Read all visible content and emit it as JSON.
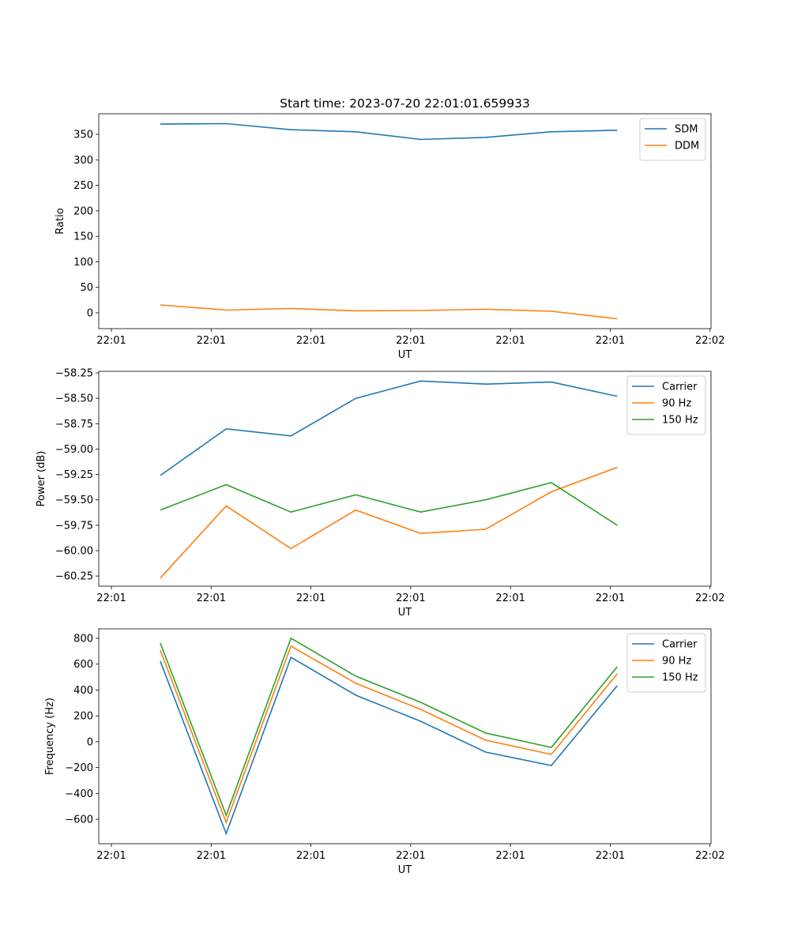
{
  "colors": {
    "blue": "#1f77b4",
    "orange": "#ff7f0e",
    "green": "#2ca02c"
  },
  "chart_data": [
    {
      "type": "line",
      "title": "Start time: 2023-07-20 22:01:01.659933",
      "xlabel": "UT",
      "ylabel": "Ratio",
      "x": [
        0.49,
        1.15,
        1.8,
        2.45,
        3.1,
        3.75,
        4.41,
        5.07
      ],
      "xlim": [
        -0.127,
        6.01
      ],
      "xticks": [
        0,
        1,
        2,
        3,
        4,
        5,
        6
      ],
      "xtick_labels": [
        "22:01",
        "22:01",
        "22:01",
        "22:01",
        "22:01",
        "22:01",
        "22:02"
      ],
      "ylim": [
        -31,
        390.3
      ],
      "yticks": [
        0,
        50,
        100,
        150,
        200,
        250,
        300,
        350
      ],
      "ytick_labels": [
        "0",
        "50",
        "100",
        "150",
        "200",
        "250",
        "300",
        "350"
      ],
      "legend": "top-right",
      "series": [
        {
          "name": "SDM",
          "color": "#1f77b4",
          "values": [
            370,
            371,
            359,
            355,
            340,
            344,
            355,
            358
          ]
        },
        {
          "name": "DDM",
          "color": "#ff7f0e",
          "values": [
            15.5,
            5.4,
            8.5,
            4,
            4.6,
            7,
            3,
            -11.6
          ]
        }
      ]
    },
    {
      "type": "line",
      "title": "",
      "xlabel": "UT",
      "ylabel": "Power (dB)",
      "x": [
        0.49,
        1.15,
        1.8,
        2.45,
        3.1,
        3.75,
        4.41,
        5.07
      ],
      "xlim": [
        -0.127,
        6.01
      ],
      "xticks": [
        0,
        1,
        2,
        3,
        4,
        5,
        6
      ],
      "xtick_labels": [
        "22:01",
        "22:01",
        "22:01",
        "22:01",
        "22:01",
        "22:01",
        "22:02"
      ],
      "ylim": [
        -60.35,
        -58.234
      ],
      "yticks": [
        -60.25,
        -60.0,
        -59.75,
        -59.5,
        -59.25,
        -59.0,
        -58.75,
        -58.5,
        -58.25
      ],
      "ytick_labels": [
        "−60.25",
        "−60.00",
        "−59.75",
        "−59.50",
        "−59.25",
        "−59.00",
        "−58.75",
        "−58.50",
        "−58.25"
      ],
      "legend": "top-right",
      "series": [
        {
          "name": "Carrier",
          "color": "#1f77b4",
          "values": [
            -59.26,
            -58.8,
            -58.87,
            -58.5,
            -58.33,
            -58.36,
            -58.34,
            -58.48
          ]
        },
        {
          "name": "90 Hz",
          "color": "#ff7f0e",
          "values": [
            -60.27,
            -59.56,
            -59.98,
            -59.6,
            -59.83,
            -59.79,
            -59.42,
            -59.18
          ]
        },
        {
          "name": "150 Hz",
          "color": "#2ca02c",
          "values": [
            -59.6,
            -59.35,
            -59.62,
            -59.45,
            -59.62,
            -59.5,
            -59.33,
            -59.75
          ]
        }
      ]
    },
    {
      "type": "line",
      "title": "",
      "xlabel": "UT",
      "ylabel": "Frequency (Hz)",
      "x": [
        0.49,
        1.15,
        1.8,
        2.45,
        3.1,
        3.75,
        4.41,
        5.07
      ],
      "xlim": [
        -0.127,
        6.01
      ],
      "xticks": [
        0,
        1,
        2,
        3,
        4,
        5,
        6
      ],
      "xtick_labels": [
        "22:01",
        "22:01",
        "22:01",
        "22:01",
        "22:01",
        "22:01",
        "22:02"
      ],
      "ylim": [
        -789,
        873
      ],
      "yticks": [
        -600,
        -400,
        -200,
        0,
        200,
        400,
        600,
        800
      ],
      "ytick_labels": [
        "−600",
        "−400",
        "−200",
        "0",
        "200",
        "400",
        "600",
        "800"
      ],
      "legend": "top-right",
      "series": [
        {
          "name": "Carrier",
          "color": "#1f77b4",
          "values": [
            623,
            -710,
            653,
            360,
            158,
            -80,
            -184,
            433
          ]
        },
        {
          "name": "90 Hz",
          "color": "#ff7f0e",
          "values": [
            708,
            -624,
            739,
            452,
            250,
            12,
            -98,
            525
          ]
        },
        {
          "name": "150 Hz",
          "color": "#2ca02c",
          "values": [
            763,
            -569,
            800,
            507,
            305,
            67,
            -44,
            580
          ]
        }
      ]
    }
  ]
}
